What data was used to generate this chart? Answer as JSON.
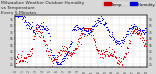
{
  "title": "Milwaukee Weather Outdoor Humidity",
  "title2": "vs Temperature",
  "title3": "Every 5 Minutes",
  "title_fontsize": 3.2,
  "background_color": "#d8d8d8",
  "plot_bg_color": "#ffffff",
  "humidity_color": "#0000dd",
  "temp_color": "#cc0000",
  "legend_humidity_label": "Humidity",
  "legend_temp_label": "Temp",
  "ylim_humidity": [
    20,
    100
  ],
  "ylim_temp": [
    20,
    100
  ],
  "marker_size": 0.5,
  "legend_fontsize": 2.8,
  "tick_fontsize": 2.2,
  "yticks_left": [
    25,
    35,
    45,
    55,
    65,
    75,
    85,
    95
  ],
  "yticks_right": [
    25,
    35,
    45,
    55,
    65,
    75,
    85,
    95
  ]
}
